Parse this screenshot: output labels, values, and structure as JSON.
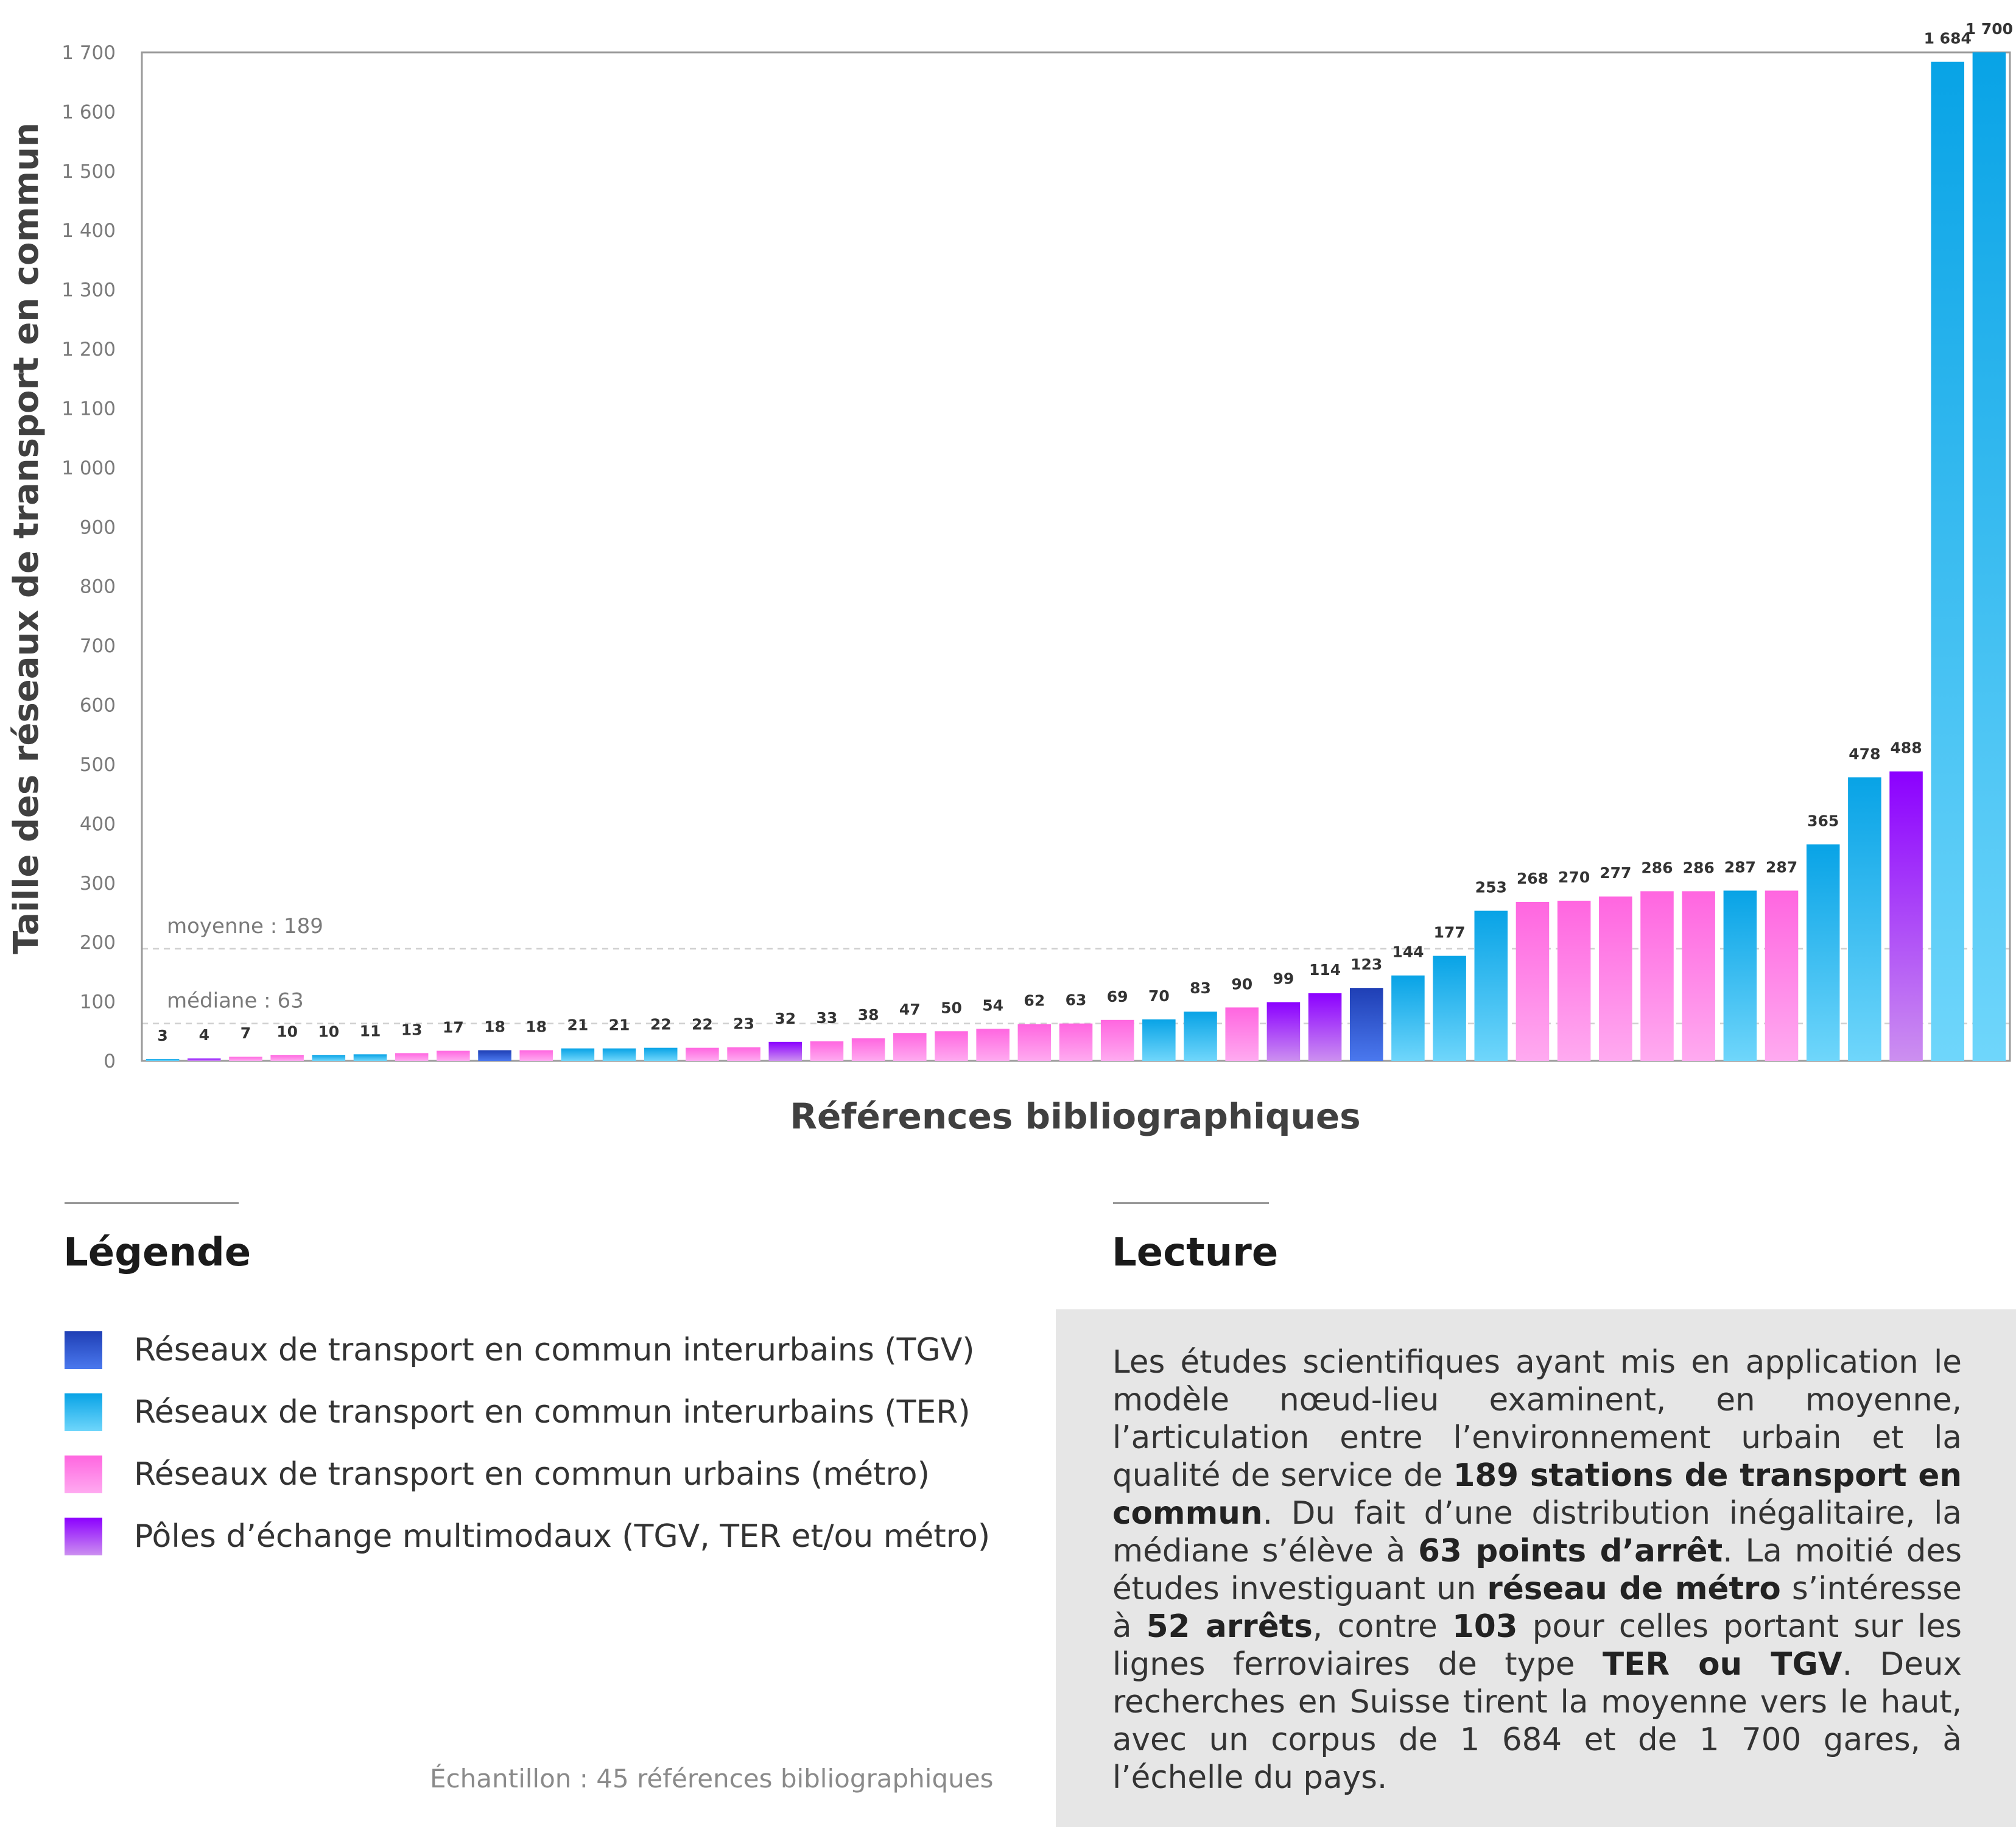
{
  "chart_data": {
    "type": "bar",
    "xlabel": "Références bibliographiques",
    "ylabel": "Taille des réseaux de transport en commun",
    "ylim": [
      0,
      1700
    ],
    "yticks": [
      0,
      100,
      200,
      300,
      400,
      500,
      600,
      700,
      800,
      900,
      1000,
      1100,
      1200,
      1300,
      1400,
      1500,
      1600,
      1700
    ],
    "ytick_labels": [
      "0",
      "100",
      "200",
      "300",
      "400",
      "500",
      "600",
      "700",
      "800",
      "900",
      "1 000",
      "1 100",
      "1 200",
      "1 300",
      "1 400",
      "1 500",
      "1 600",
      "1 700"
    ],
    "values": [
      3,
      4,
      7,
      10,
      10,
      11,
      13,
      17,
      18,
      18,
      21,
      21,
      22,
      22,
      23,
      32,
      33,
      38,
      47,
      50,
      54,
      62,
      63,
      69,
      70,
      83,
      90,
      99,
      114,
      123,
      144,
      177,
      253,
      268,
      270,
      277,
      286,
      286,
      287,
      287,
      365,
      478,
      488,
      1684,
      1700
    ],
    "value_labels": [
      "3",
      "4",
      "7",
      "10",
      "10",
      "11",
      "13",
      "17",
      "18",
      "18",
      "21",
      "21",
      "22",
      "22",
      "23",
      "32",
      "33",
      "38",
      "47",
      "50",
      "54",
      "62",
      "63",
      "69",
      "70",
      "83",
      "90",
      "99",
      "114",
      "123",
      "144",
      "177",
      "253",
      "268",
      "270",
      "277",
      "286",
      "286",
      "287",
      "287",
      "365",
      "478",
      "488",
      "1 684",
      "1 700"
    ],
    "categories": [
      "ter",
      "pole",
      "metro",
      "metro",
      "ter",
      "ter",
      "metro",
      "metro",
      "tgv",
      "metro",
      "ter",
      "ter",
      "ter",
      "metro",
      "metro",
      "pole",
      "metro",
      "metro",
      "metro",
      "metro",
      "metro",
      "metro",
      "metro",
      "metro",
      "ter",
      "ter",
      "metro",
      "pole",
      "pole",
      "tgv",
      "ter",
      "ter",
      "ter",
      "metro",
      "metro",
      "metro",
      "metro",
      "metro",
      "ter",
      "metro",
      "ter",
      "ter",
      "pole",
      "ter",
      "ter"
    ],
    "reference_lines": [
      {
        "label": "moyenne : 189",
        "value": 189
      },
      {
        "label": "médiane : 63",
        "value": 63
      }
    ],
    "grid": false
  },
  "colors": {
    "tgv": [
      "#1f3fb5",
      "#4a78ee"
    ],
    "ter": [
      "#08a3e6",
      "#6fd6fb"
    ],
    "metro": [
      "#ff66e0",
      "#ffaaf0"
    ],
    "pole": [
      "#8b00ff",
      "#cc8ff0"
    ]
  },
  "legend": {
    "title": "Légende",
    "items": [
      {
        "key": "tgv",
        "label": "Réseaux de transport en commun interurbains (TGV)"
      },
      {
        "key": "ter",
        "label": "Réseaux de transport en commun interurbains (TER)"
      },
      {
        "key": "metro",
        "label": "Réseaux de transport en commun urbains (métro)"
      },
      {
        "key": "pole",
        "label": "Pôles d’échange multimodaux (TGV, TER et/ou métro)"
      }
    ],
    "sample": "Échantillon : 45 références bibliographiques"
  },
  "lecture": {
    "title": "Lecture",
    "t1": "Les études scientifiques ayant mis en application le modèle nœud-lieu examinent, en moyenne, l’articulation entre l’environnement urbain et la qualité de service de ",
    "b1": "189 stations de transport en commun",
    "t2": ". Du fait d’une distribution inégalitaire, la médiane s’élève à ",
    "b2": "63 points d’arrêt",
    "t3": ". La moitié des études investiguant un ",
    "p1": "réseau de métro",
    "t4": " s’intéresse à ",
    "p2": "52 arrêts",
    "t5": ", contre ",
    "c1": "103",
    "t6": " pour celles portant sur les lignes ferroviaires de type ",
    "c2": "TER ou TGV",
    "t7": ". Deux recherches en Suisse tirent la moyenne vers le haut, avec un corpus de 1 684 et de 1 700 gares, à l’échelle du pays."
  }
}
